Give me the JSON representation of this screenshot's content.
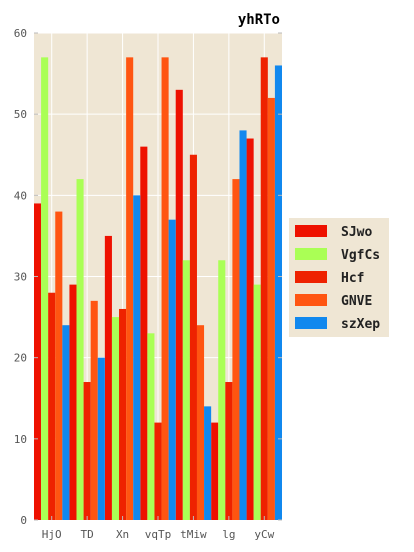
{
  "chart_data": {
    "type": "bar",
    "title": "yhRTo",
    "xlabel": "",
    "ylabel": "",
    "ylim": [
      0,
      60
    ],
    "yticks": [
      0,
      10,
      20,
      30,
      40,
      50,
      60
    ],
    "grid": true,
    "legend_position": "right",
    "background": "#efe6d4",
    "categories": [
      "HjO",
      "TD",
      "Xn",
      "vqTp",
      "tMiw",
      "lg",
      "yCw"
    ],
    "series": [
      {
        "name": "SJwo",
        "color": "#ee1100",
        "values": [
          39,
          29,
          35,
          46,
          53,
          12,
          47
        ]
      },
      {
        "name": "VgfCs",
        "color": "#aaff55",
        "values": [
          57,
          42,
          25,
          23,
          32,
          32,
          29
        ]
      },
      {
        "name": "Hcf",
        "color": "#ee2200",
        "values": [
          28,
          17,
          26,
          12,
          45,
          17,
          57
        ]
      },
      {
        "name": "GNVE",
        "color": "#ff5511",
        "values": [
          38,
          27,
          57,
          57,
          24,
          42,
          52
        ]
      },
      {
        "name": "szXep",
        "color": "#1188ee",
        "values": [
          24,
          20,
          40,
          37,
          14,
          48,
          56
        ]
      }
    ]
  }
}
